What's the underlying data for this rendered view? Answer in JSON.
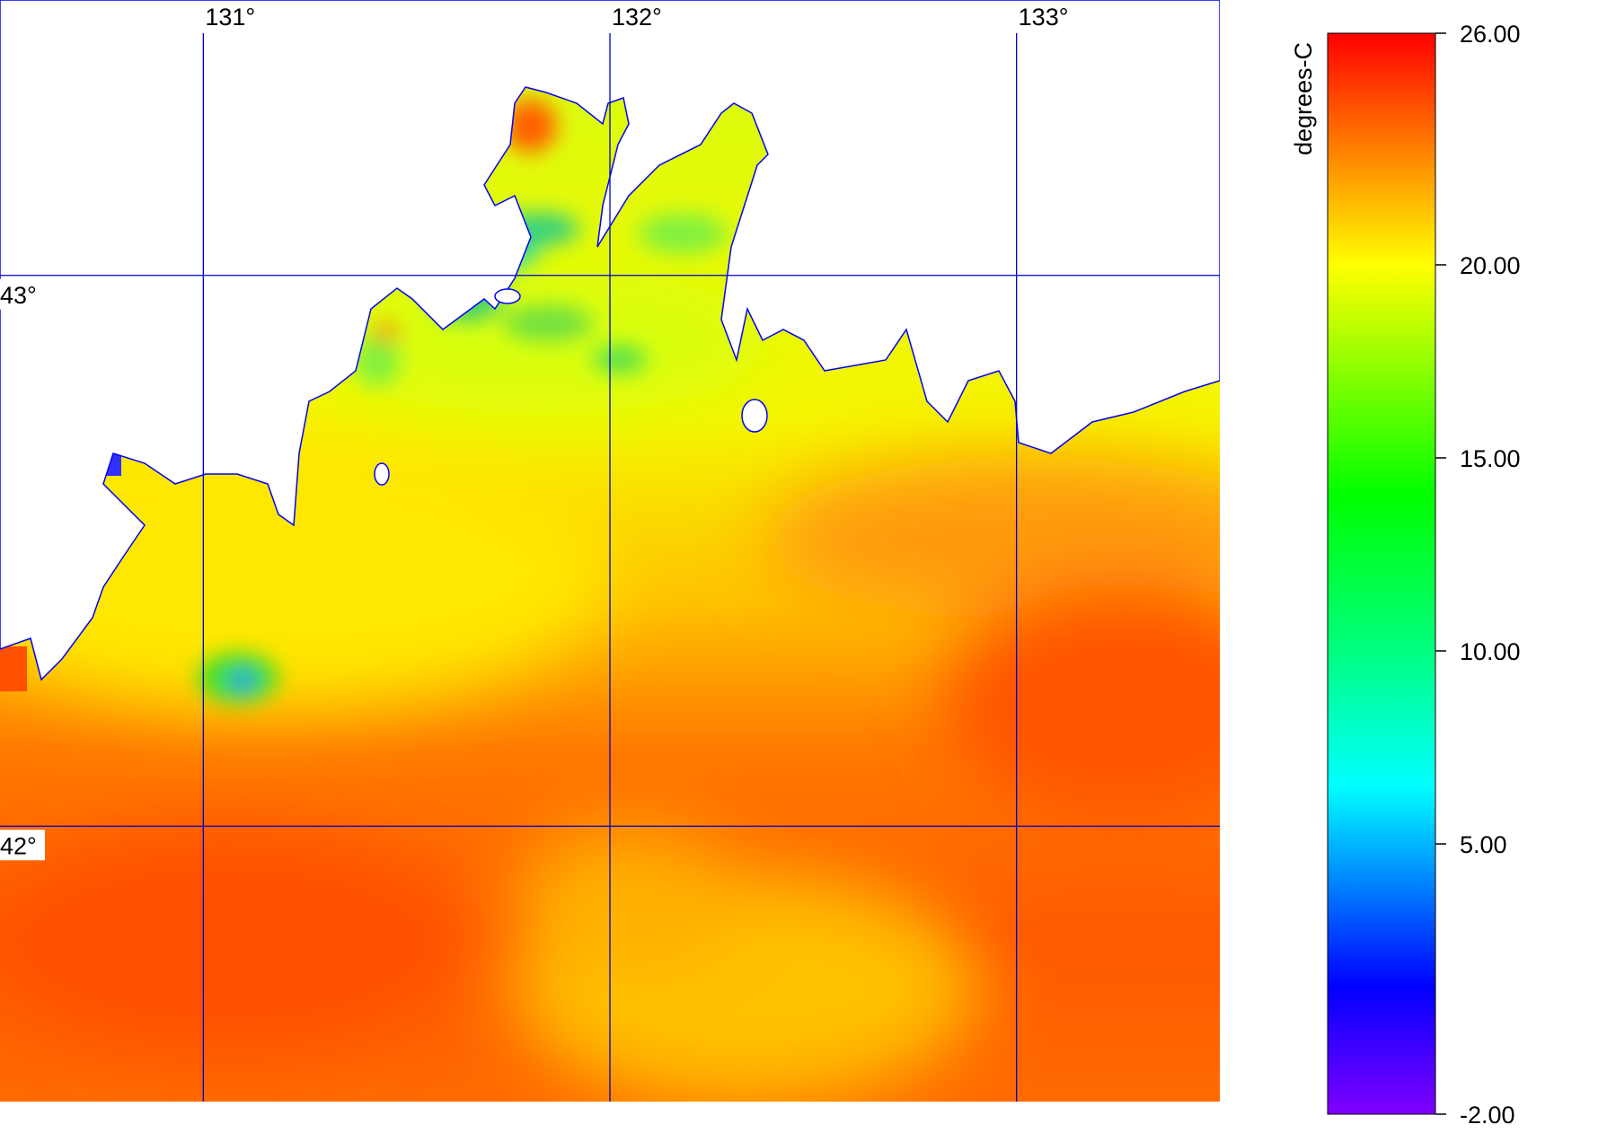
{
  "map": {
    "xlim": [
      130.5,
      133.5
    ],
    "ylim": [
      41.5,
      43.5
    ],
    "xticks": [
      {
        "value": 131,
        "label": "131°"
      },
      {
        "value": 132,
        "label": "132°"
      },
      {
        "value": 133,
        "label": "133°"
      }
    ],
    "yticks": [
      {
        "value": 43,
        "label": "43°"
      },
      {
        "value": 42,
        "label": "42°"
      }
    ],
    "grid_color": "#0000cc"
  },
  "colorbar": {
    "title": "degrees-C",
    "lim": [
      -2,
      26
    ],
    "ticks": [
      {
        "value": 26,
        "label": "26.00"
      },
      {
        "value": 20,
        "label": "20.00"
      },
      {
        "value": 15,
        "label": "15.00"
      },
      {
        "value": 10,
        "label": "10.00"
      },
      {
        "value": 5,
        "label": "5.00"
      },
      {
        "value": -2,
        "label": "-2.00"
      }
    ],
    "colors": [
      {
        "value": -2,
        "color": "#8000ff"
      },
      {
        "value": 1.3,
        "color": "#0000ff"
      },
      {
        "value": 6.5,
        "color": "#00ffff"
      },
      {
        "value": 10,
        "color": "#00ff80"
      },
      {
        "value": 14,
        "color": "#00ff00"
      },
      {
        "value": 20,
        "color": "#ffff00"
      },
      {
        "value": 26,
        "color": "#ff0000"
      }
    ]
  }
}
